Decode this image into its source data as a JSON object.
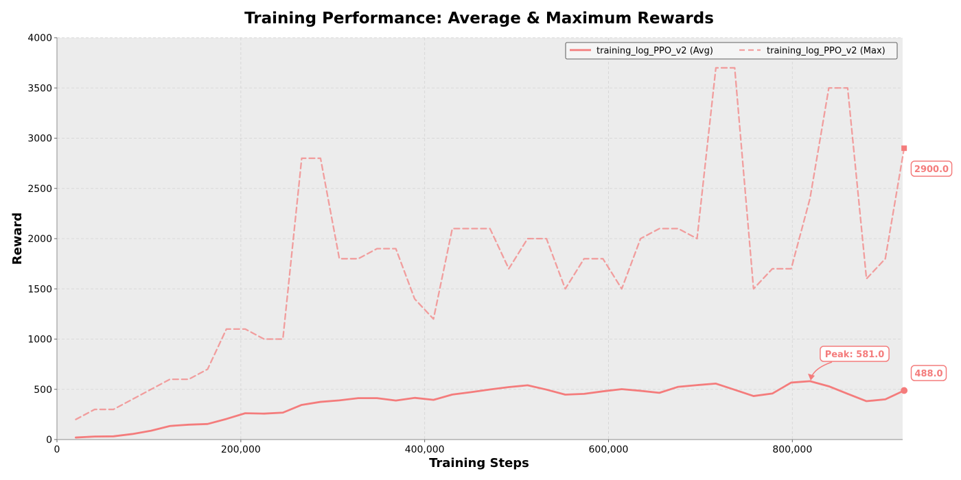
{
  "chart_data": {
    "type": "line",
    "title": "Training Performance: Average & Maximum Rewards",
    "xlabel": "Training Steps",
    "ylabel": "Reward",
    "xlim": [
      0,
      920000
    ],
    "ylim": [
      0,
      4000
    ],
    "x_ticks": [
      0,
      200000,
      400000,
      600000,
      800000
    ],
    "x_tick_labels": [
      "0",
      "200,000",
      "400,000",
      "600,000",
      "800,000"
    ],
    "y_ticks": [
      0,
      500,
      1000,
      1500,
      2000,
      2500,
      3000,
      3500,
      4000
    ],
    "y_tick_labels": [
      "0",
      "500",
      "1000",
      "1500",
      "2000",
      "2500",
      "3000",
      "3500",
      "4000"
    ],
    "grid": true,
    "legend_position": "top-right",
    "colors": {
      "series": "#f47c7c",
      "background": "#ececec"
    },
    "x": [
      20480,
      40960,
      61440,
      81920,
      102400,
      122880,
      143360,
      163840,
      184320,
      204800,
      225280,
      245760,
      266240,
      286720,
      307200,
      327680,
      348160,
      368640,
      389120,
      409600,
      430080,
      450560,
      471040,
      491520,
      512000,
      532480,
      552960,
      573440,
      593920,
      614400,
      634880,
      655360,
      675840,
      696320,
      716800,
      737280,
      757760,
      778240,
      798720,
      819200,
      839680,
      860160,
      880640,
      901120,
      921600
    ],
    "series": [
      {
        "name": "training_log_PPO_v2 (Avg)",
        "style": "solid",
        "values": [
          20,
          30,
          32,
          55,
          88,
          135,
          148,
          155,
          205,
          262,
          258,
          268,
          345,
          375,
          390,
          412,
          412,
          388,
          415,
          395,
          448,
          472,
          498,
          522,
          540,
          497,
          447,
          455,
          480,
          502,
          485,
          465,
          525,
          542,
          557,
          495,
          433,
          458,
          567,
          581,
          530,
          455,
          382,
          400,
          488
        ]
      },
      {
        "name": "training_log_PPO_v2 (Max)",
        "style": "dashed",
        "values": [
          200,
          300,
          300,
          400,
          500,
          600,
          600,
          700,
          1100,
          1100,
          1000,
          1000,
          2800,
          2800,
          1800,
          1800,
          1900,
          1900,
          1400,
          1200,
          2100,
          2100,
          2100,
          1700,
          2000,
          2000,
          1500,
          1800,
          1800,
          1500,
          2000,
          2100,
          2100,
          2000,
          3700,
          3700,
          1500,
          1700,
          1700,
          2400,
          3500,
          3500,
          1600,
          1800,
          2900
        ]
      }
    ],
    "annotations": {
      "peak_label": "Peak: 581.0",
      "peak_x": 819200,
      "peak_y": 581,
      "last_avg_label": "488.0",
      "last_max_label": "2900.0"
    }
  }
}
